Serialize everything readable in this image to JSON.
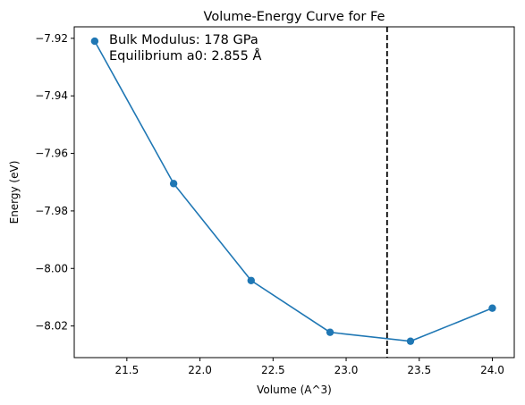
{
  "chart_data": {
    "type": "line",
    "title": "Volume-Energy Curve for Fe",
    "xlabel": "Volume (A^3)",
    "ylabel": "Energy (eV)",
    "xlim": [
      21.14,
      24.15
    ],
    "ylim": [
      -8.031,
      -7.916
    ],
    "xticks": [
      21.5,
      22.0,
      22.5,
      23.0,
      23.5,
      24.0
    ],
    "xtick_labels": [
      "21.5",
      "22.0",
      "22.5",
      "23.0",
      "23.5",
      "24.0"
    ],
    "yticks": [
      -7.92,
      -7.94,
      -7.96,
      -7.98,
      -8.0,
      -8.02
    ],
    "ytick_labels": [
      "−7.92",
      "−7.94",
      "−7.96",
      "−7.98",
      "−8.00",
      "−8.02"
    ],
    "series": [
      {
        "x": [
          21.28,
          21.82,
          22.35,
          22.89,
          23.44,
          24.0
        ],
        "y": [
          -7.921,
          -7.9705,
          -8.0042,
          -8.0222,
          -8.0253,
          -8.0138
        ],
        "color": "#1f77b4",
        "marker": "circle"
      }
    ],
    "vline": {
      "x": 23.28,
      "color": "#000000",
      "style": "dashed"
    },
    "annotations": [
      "Bulk Modulus: 178 GPa",
      "Equilibrium a0: 2.855 Å"
    ],
    "grid": false,
    "legend": "none"
  }
}
